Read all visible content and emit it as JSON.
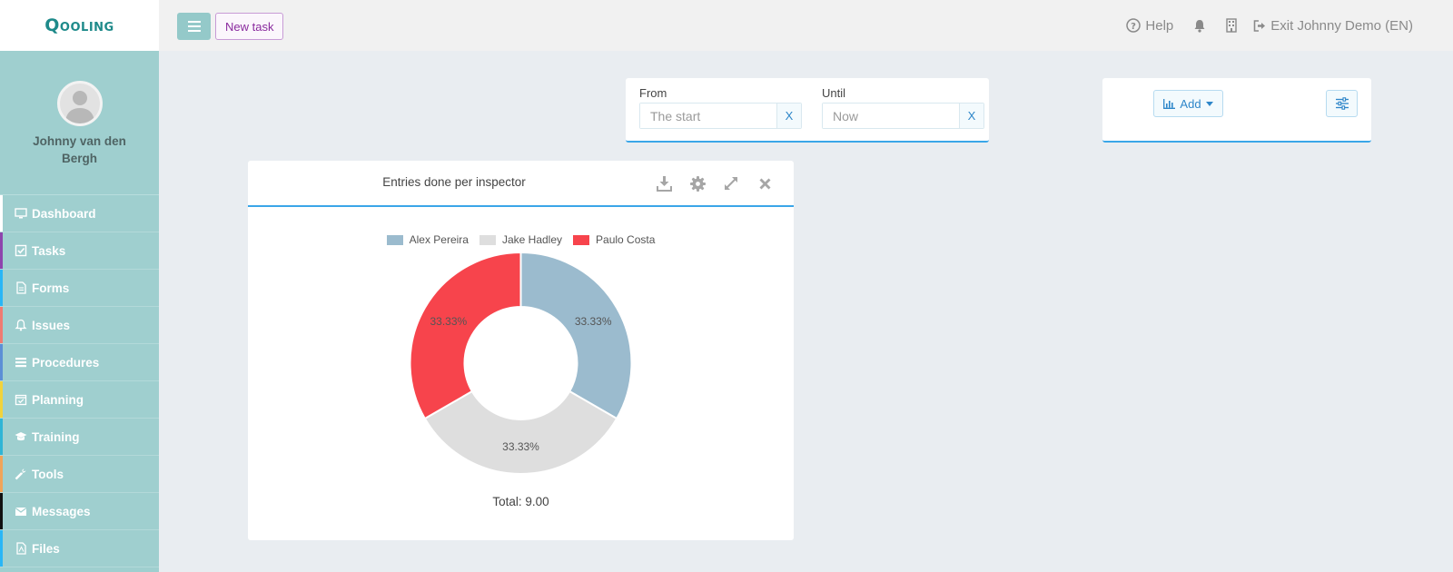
{
  "app": {
    "logo": "Qooling"
  },
  "header": {
    "new_task_label": "New task",
    "help_label": "Help",
    "exit_label": "Exit Johnny Demo (EN)"
  },
  "user": {
    "name": "Johnny van den Bergh"
  },
  "sidebar": {
    "items": [
      {
        "label": "Dashboard",
        "icon": "monitor-icon",
        "accent": "#ffffff"
      },
      {
        "label": "Tasks",
        "icon": "check-square-icon",
        "accent": "#8e44ad"
      },
      {
        "label": "Forms",
        "icon": "file-icon",
        "accent": "#29b6f6"
      },
      {
        "label": "Issues",
        "icon": "bell-icon",
        "accent": "#ef7b72"
      },
      {
        "label": "Procedures",
        "icon": "list-icon",
        "accent": "#5c8fd6"
      },
      {
        "label": "Planning",
        "icon": "calendar-check-icon",
        "accent": "#f1d33c"
      },
      {
        "label": "Training",
        "icon": "graduation-cap-icon",
        "accent": "#2fb5d6"
      },
      {
        "label": "Tools",
        "icon": "wrench-icon",
        "accent": "#f0a45a"
      },
      {
        "label": "Messages",
        "icon": "envelope-icon",
        "accent": "#111111"
      },
      {
        "label": "Files",
        "icon": "file-pdf-icon",
        "accent": "#29b6f6"
      }
    ]
  },
  "filter": {
    "from_label": "From",
    "from_placeholder": "The start",
    "until_label": "Until",
    "until_placeholder": "Now",
    "clear_label": "X"
  },
  "toolbar": {
    "add_label": "Add"
  },
  "widget": {
    "title": "Entries done per inspector",
    "total_label": "Total: 9.00"
  },
  "chart_data": {
    "type": "pie",
    "variant": "donut",
    "title": "Entries done per inspector",
    "categories": [
      "Alex Pereira",
      "Jake Hadley",
      "Paulo Costa"
    ],
    "values": [
      3,
      3,
      3
    ],
    "labels": [
      "33.33%",
      "33.33%",
      "33.33%"
    ],
    "colors": [
      "#9bbbce",
      "#dedede",
      "#f7444c"
    ],
    "legend": "top",
    "total": 9.0
  }
}
